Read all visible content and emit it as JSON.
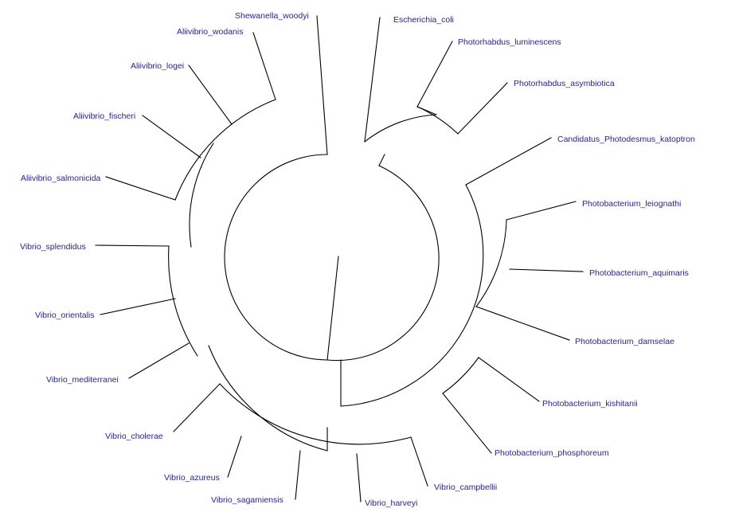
{
  "tree": {
    "label_color": "#2323a8",
    "branch_color": "#000000",
    "tips": [
      "Shewanella_woodyi",
      "Escherichia_coli",
      "Photorhabdus_luminescens",
      "Photorhabdus_asymbiotica",
      "Candidatus_Photodesmus_katoptron",
      "Photobacterium_leiognathi",
      "Photobacterium_aquimaris",
      "Photobacterium_damselae",
      "Photobacterium_kishitanii",
      "Photobacterium_phosphoreum",
      "Vibrio_campbellii",
      "Vibrio_harveyi",
      "Vibrio_sagamiensis",
      "Vibrio_azureus",
      "Vibrio_cholerae",
      "Vibrio_mediterranei",
      "Vibrio_orientalis",
      "Vibrio_splendidus",
      "Aliivibrio_salmonicida",
      "Aliivibrio_fischeri",
      "Aliivibrio_logei",
      "Aliivibrio_wodanis"
    ]
  }
}
